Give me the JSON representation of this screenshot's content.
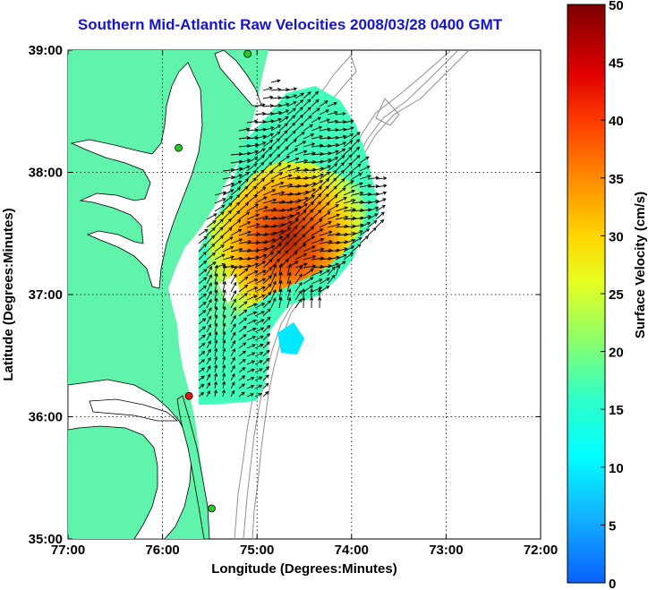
{
  "chart_data": {
    "type": "map",
    "title": "Southern Mid-Atlantic Raw Velocities 2008/03/28 0400 GMT",
    "xlabel": "Longitude (Degrees:Minutes)",
    "ylabel": "Latitude (Degrees:Minutes)",
    "x_ticks": [
      "77:00",
      "76:00",
      "75:00",
      "74:00",
      "73:00",
      "72:00"
    ],
    "y_ticks": [
      "39:00",
      "38:00",
      "37:00",
      "36:00",
      "35:00"
    ],
    "xlim_deg_west": [
      77,
      72
    ],
    "ylim_deg_north": [
      35,
      39
    ],
    "grid": "dotted",
    "colorbar": {
      "label": "Surface Velocity (cm/s)",
      "ticks": [
        0,
        5,
        10,
        15,
        20,
        25,
        30,
        35,
        40,
        45,
        50
      ],
      "range": [
        0,
        50
      ],
      "colormap": "jet"
    },
    "stations": [
      {
        "lon": -75.1,
        "lat": 38.97,
        "color": "#22cc22"
      },
      {
        "lon": -75.83,
        "lat": 38.2,
        "color": "#22cc22"
      },
      {
        "lon": -75.72,
        "lat": 36.17,
        "color": "#ee1111"
      },
      {
        "lon": -75.48,
        "lat": 35.25,
        "color": "#22cc22"
      }
    ],
    "velocity_field": {
      "core_speed_cm_s": 42,
      "core_lon": -74.7,
      "core_lat": 37.65,
      "mean_direction": "north-east"
    },
    "land_color": "#5ff3ac",
    "water_color": "#ffffff"
  }
}
